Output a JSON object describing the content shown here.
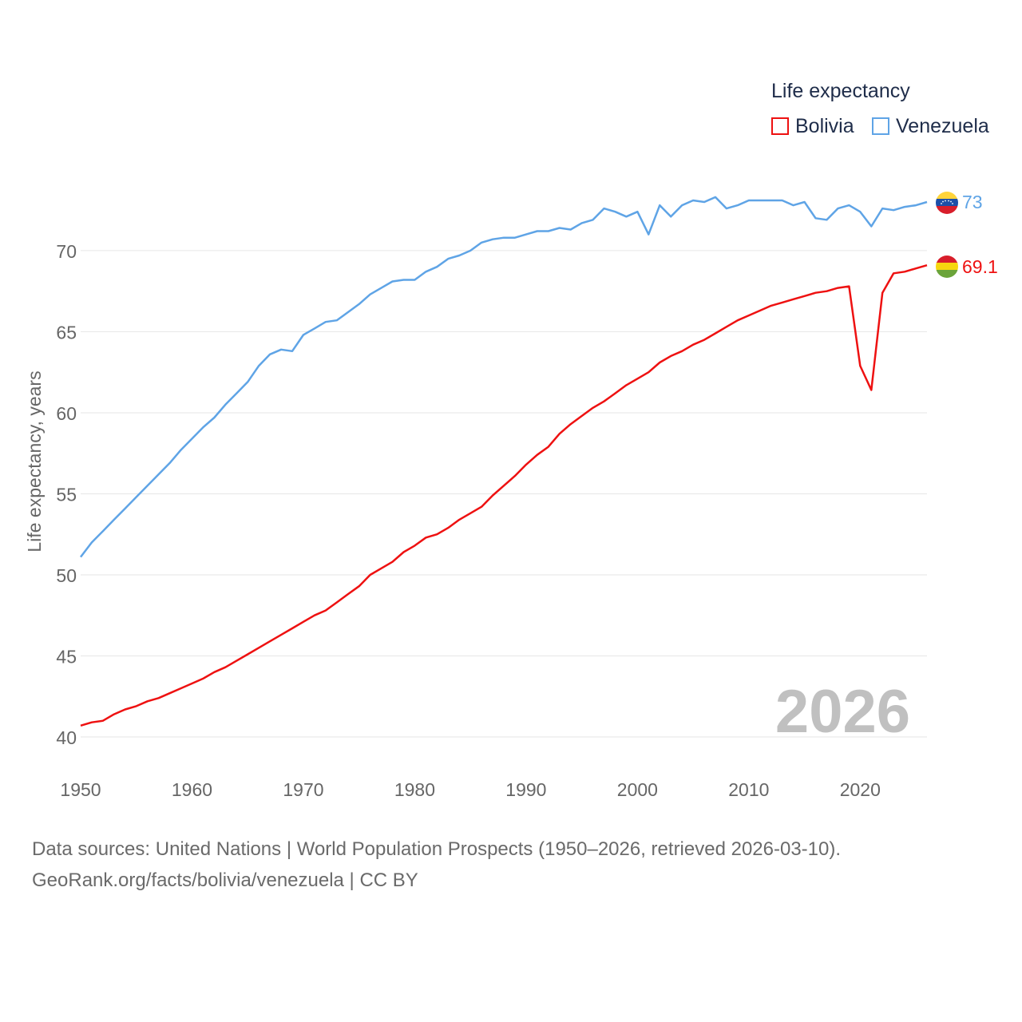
{
  "legend": {
    "title": "Life expectancy",
    "items": [
      {
        "label": "Bolivia",
        "color": "#ee1111"
      },
      {
        "label": "Venezuela",
        "color": "#5fa4e6"
      }
    ]
  },
  "current_year": "2026",
  "source": {
    "line1": "Data sources: United Nations | World Population Prospects (1950–2026, retrieved 2026-03-10).",
    "line2": "GeoRank.org/facts/bolivia/venezuela | CC BY"
  },
  "chart_data": {
    "type": "line",
    "title": "Life expectancy",
    "xlabel": "",
    "ylabel": "Life expectancy, years",
    "xlim": [
      1950,
      2026
    ],
    "ylim": [
      40,
      73
    ],
    "grid": true,
    "x_ticks": [
      1950,
      1960,
      1970,
      1980,
      1990,
      2000,
      2010,
      2020
    ],
    "y_ticks": [
      40,
      45,
      50,
      55,
      60,
      65,
      70
    ],
    "end_labels": [
      "69.1",
      "73"
    ],
    "x": [
      1950,
      1951,
      1952,
      1953,
      1954,
      1955,
      1956,
      1957,
      1958,
      1959,
      1960,
      1961,
      1962,
      1963,
      1964,
      1965,
      1966,
      1967,
      1968,
      1969,
      1970,
      1971,
      1972,
      1973,
      1974,
      1975,
      1976,
      1977,
      1978,
      1979,
      1980,
      1981,
      1982,
      1983,
      1984,
      1985,
      1986,
      1987,
      1988,
      1989,
      1990,
      1991,
      1992,
      1993,
      1994,
      1995,
      1996,
      1997,
      1998,
      1999,
      2000,
      2001,
      2002,
      2003,
      2004,
      2005,
      2006,
      2007,
      2008,
      2009,
      2010,
      2011,
      2012,
      2013,
      2014,
      2015,
      2016,
      2017,
      2018,
      2019,
      2020,
      2021,
      2022,
      2023,
      2024,
      2025,
      2026
    ],
    "series": [
      {
        "name": "Bolivia",
        "color": "#ee1111",
        "values": [
          40.7,
          40.9,
          41.0,
          41.4,
          41.7,
          41.9,
          42.2,
          42.4,
          42.7,
          43.0,
          43.3,
          43.6,
          44.0,
          44.3,
          44.7,
          45.1,
          45.5,
          45.9,
          46.3,
          46.7,
          47.1,
          47.5,
          47.8,
          48.3,
          48.8,
          49.3,
          50.0,
          50.4,
          50.8,
          51.4,
          51.8,
          52.3,
          52.5,
          52.9,
          53.4,
          53.8,
          54.2,
          54.9,
          55.5,
          56.1,
          56.8,
          57.4,
          57.9,
          58.7,
          59.3,
          59.8,
          60.3,
          60.7,
          61.2,
          61.7,
          62.1,
          62.5,
          63.1,
          63.5,
          63.8,
          64.2,
          64.5,
          64.9,
          65.3,
          65.7,
          66.0,
          66.3,
          66.6,
          66.8,
          67.0,
          67.2,
          67.4,
          67.5,
          67.7,
          67.8,
          62.9,
          61.4,
          67.4,
          68.6,
          68.7,
          68.9,
          69.1
        ]
      },
      {
        "name": "Venezuela",
        "color": "#5fa4e6",
        "values": [
          51.1,
          52.0,
          52.7,
          53.4,
          54.1,
          54.8,
          55.5,
          56.2,
          56.9,
          57.7,
          58.4,
          59.1,
          59.7,
          60.5,
          61.2,
          61.9,
          62.9,
          63.6,
          63.9,
          63.8,
          64.8,
          65.2,
          65.6,
          65.7,
          66.2,
          66.7,
          67.3,
          67.7,
          68.1,
          68.2,
          68.2,
          68.7,
          69.0,
          69.5,
          69.7,
          70.0,
          70.5,
          70.7,
          70.8,
          70.8,
          71.0,
          71.2,
          71.2,
          71.4,
          71.3,
          71.7,
          71.9,
          72.6,
          72.4,
          72.1,
          72.4,
          71.0,
          72.8,
          72.1,
          72.8,
          73.1,
          73.0,
          73.3,
          72.6,
          72.8,
          73.1,
          73.1,
          73.1,
          73.1,
          72.8,
          73.0,
          72.0,
          71.9,
          72.6,
          72.8,
          72.4,
          71.5,
          72.6,
          72.5,
          72.7,
          72.8,
          73.0
        ]
      }
    ]
  }
}
